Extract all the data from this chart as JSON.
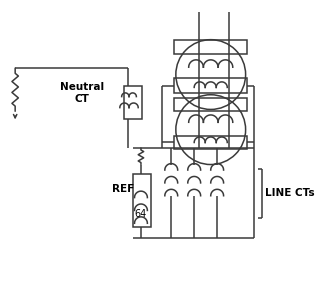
{
  "bg_color": "#ffffff",
  "line_color": "#3a3a3a",
  "line_width": 1.1,
  "label_neutral_ct": "Neutral\nCT",
  "label_ref": "REF",
  "label_64": "64",
  "label_line_cts": "LINE CTs",
  "figsize": [
    3.2,
    2.96
  ],
  "dpi": 100
}
